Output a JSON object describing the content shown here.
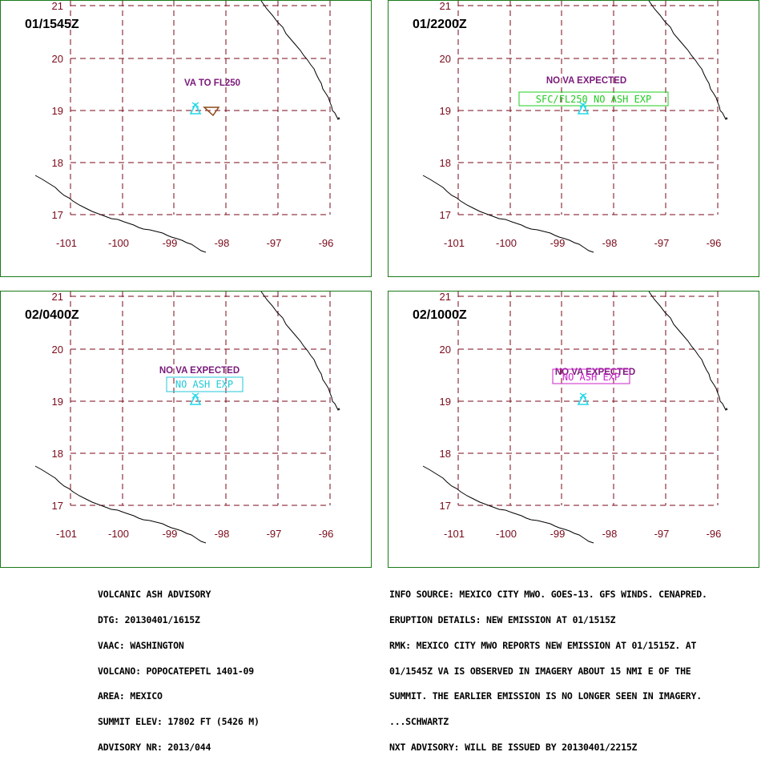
{
  "panels": [
    {
      "time": "01/1545Z",
      "lat_labels": [
        "21",
        "20",
        "19",
        "18",
        "17"
      ],
      "lon_labels": [
        "-101",
        "-100",
        "-99",
        "-98",
        "-97",
        "-96"
      ],
      "annotation": "VA TO FL250",
      "box_text": "",
      "box_color": "",
      "ash_area": true
    },
    {
      "time": "01/2200Z",
      "lat_labels": [
        "21",
        "20",
        "19",
        "18",
        "17"
      ],
      "lon_labels": [
        "-101",
        "-100",
        "-99",
        "-98",
        "-97",
        "-96"
      ],
      "annotation": "NO VA EXPECTED",
      "box_text": "SFC/FL250 NO ASH EXP",
      "box_color": "#22cc22",
      "ash_area": false
    },
    {
      "time": "02/0400Z",
      "lat_labels": [
        "21",
        "20",
        "19",
        "18",
        "17"
      ],
      "lon_labels": [
        "-101",
        "-100",
        "-99",
        "-98",
        "-97",
        "-96"
      ],
      "annotation": "NO VA EXPECTED",
      "box_text": "NO ASH EXP",
      "box_color": "#22c8d8",
      "ash_area": false
    },
    {
      "time": "02/1000Z",
      "lat_labels": [
        "21",
        "20",
        "19",
        "18",
        "17"
      ],
      "lon_labels": [
        "-101",
        "-100",
        "-99",
        "-98",
        "-97",
        "-96"
      ],
      "annotation": "NO VA EXPECTED",
      "box_text": "NO ASH EXP",
      "box_color": "#cc22cc",
      "ash_area": false
    }
  ],
  "advisory_left": [
    "VOLCANIC ASH ADVISORY",
    "DTG: 20130401/1615Z",
    "VAAC: WASHINGTON",
    "VOLCANO: POPOCATEPETL 1401-09",
    "AREA: MEXICO",
    "SUMMIT ELEV: 17802 FT (5426 M)",
    "ADVISORY NR: 2013/044"
  ],
  "advisory_right": [
    "INFO SOURCE: MEXICO CITY MWO. GOES-13. GFS WINDS. CENAPRED.",
    "ERUPTION DETAILS: NEW EMISSION AT 01/1515Z",
    "RMK: MEXICO CITY MWO REPORTS NEW EMISSION AT 01/1515Z. AT",
    "01/1545Z VA IS OBSERVED IN IMAGERY ABOUT 15 NMI E OF THE",
    "SUMMIT. THE EARLIER EMISSION IS NO LONGER SEEN IN IMAGERY.",
    "...SCHWARTZ",
    "NXT ADVISORY: WILL BE ISSUED BY 20130401/2215Z"
  ],
  "icons": {
    "volcano": "volcano-triangle-icon",
    "ash": "ash-area-polygon-icon"
  },
  "colors": {
    "grid": "#7a0a1a",
    "border": "#1a7a1a",
    "volcano": "#22d8e8",
    "annotation": "#7a1a7a",
    "ash_area": "#8a4a1a"
  }
}
